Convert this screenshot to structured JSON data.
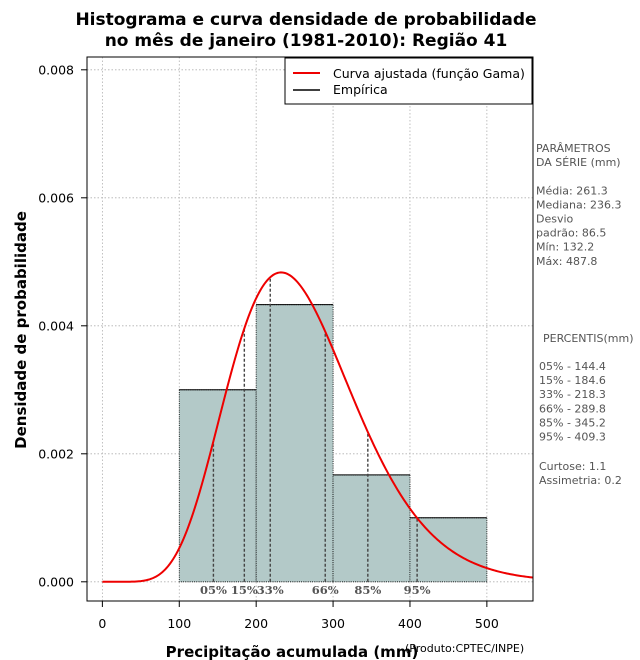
{
  "chart_data": {
    "type": "histogram",
    "title_lines": [
      "Histograma e curva densidade de probabilidade",
      "no mês de janeiro (1981-2010): Região 41"
    ],
    "xlabel": "Precipitação acumulada (mm)",
    "ylabel": "Densidade de probabilidade",
    "xlim": [
      -20,
      560
    ],
    "ylim": [
      -0.0003,
      0.0082
    ],
    "xticks": [
      0,
      100,
      200,
      300,
      400,
      500
    ],
    "xtick_labels": [
      "0",
      "100",
      "200",
      "300",
      "400",
      "500"
    ],
    "yticks": [
      0.0,
      0.002,
      0.004,
      0.006,
      0.008
    ],
    "ytick_labels": [
      "0.000",
      "0.002",
      "0.004",
      "0.006",
      "0.008"
    ],
    "grid": true,
    "bins": [
      {
        "from": 100,
        "to": 200,
        "density": 0.003
      },
      {
        "from": 200,
        "to": 300,
        "density": 0.00433
      },
      {
        "from": 300,
        "to": 400,
        "density": 0.00167
      },
      {
        "from": 400,
        "to": 500,
        "density": 0.001
      }
    ],
    "bar_color": "#b3c9c8",
    "curve_color": "#ee0000",
    "gamma_fit": {
      "shape": 9.1,
      "scale": 28.7
    },
    "legend": {
      "position": "top-right",
      "entries": [
        {
          "label": "Curva ajustada (função Gama)",
          "color": "#ee0000"
        },
        {
          "label": "Empírica",
          "color": "#000000"
        }
      ]
    },
    "percentile_markers": [
      {
        "label": "05%",
        "value": 144.4
      },
      {
        "label": "15%",
        "value": 184.6
      },
      {
        "label": "33%",
        "value": 218.3
      },
      {
        "label": "66%",
        "value": 289.8
      },
      {
        "label": "85%",
        "value": 345.2
      },
      {
        "label": "95%",
        "value": 409.3
      }
    ]
  },
  "side_panel": {
    "params_lines": [
      "PARÂMETROS",
      " DA SÉRIE (mm)",
      "",
      "Média:  261.3",
      "Mediana:  236.3",
      "Desvio",
      "padrão:  86.5",
      "Mín:  132.2",
      "Máx:  487.8"
    ],
    "pct_title": "PERCENTIS(mm)",
    "pct_lines": [
      "05% -  144.4",
      "15% -  184.6",
      "33% -  218.3",
      "66% -  289.8",
      "85% -  345.2",
      "95% -  409.3"
    ],
    "stats_lines": [
      "Curtose:  1.1",
      "Assimetria:  0.2"
    ]
  },
  "credit": "(Produto:CPTEC/INPE)"
}
